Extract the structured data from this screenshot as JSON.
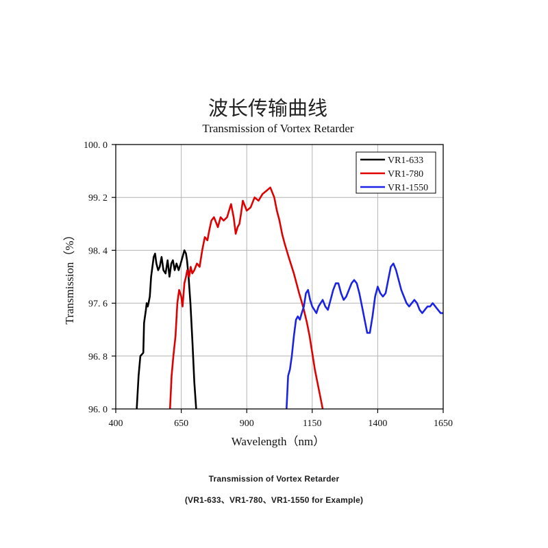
{
  "chart_data": {
    "type": "line",
    "title_cn": "波长传输曲线",
    "title": "Transmission of Vortex Retarder",
    "xlabel": "Wavelength（nm）",
    "ylabel": "Transmission（%）",
    "xlim": [
      400,
      1650
    ],
    "ylim": [
      96.0,
      100.0
    ],
    "xticks": [
      400,
      650,
      900,
      1150,
      1400,
      1650
    ],
    "yticks": [
      96.0,
      96.8,
      97.6,
      98.4,
      99.2,
      100.0
    ],
    "ytick_labels": [
      "96. 0",
      "96. 8",
      "97. 6",
      "98. 4",
      "99. 2",
      "100. 0"
    ],
    "grid": true,
    "legend_position": "top-right",
    "series": [
      {
        "name": "VR1-633",
        "color": "#000000",
        "x": [
          480,
          487,
          494,
          505,
          508,
          515,
          518,
          522,
          525,
          530,
          535,
          545,
          550,
          555,
          562,
          568,
          575,
          582,
          590,
          598,
          605,
          612,
          618,
          625,
          632,
          640,
          648,
          655,
          662,
          668,
          672,
          678,
          685,
          693,
          700,
          707
        ],
        "y": [
          96.0,
          96.5,
          96.8,
          96.85,
          97.3,
          97.5,
          97.6,
          97.55,
          97.6,
          97.7,
          98.0,
          98.3,
          98.35,
          98.2,
          98.1,
          98.15,
          98.3,
          98.1,
          98.05,
          98.25,
          98.0,
          98.2,
          98.25,
          98.1,
          98.2,
          98.1,
          98.2,
          98.3,
          98.4,
          98.35,
          98.25,
          98.0,
          97.6,
          97.0,
          96.4,
          96.0
        ]
      },
      {
        "name": "VR1-780",
        "color": "#e00000",
        "x": [
          607,
          613,
          620,
          628,
          635,
          642,
          650,
          655,
          662,
          668,
          673,
          680,
          686,
          692,
          700,
          710,
          720,
          730,
          740,
          750,
          757,
          765,
          775,
          790,
          800,
          812,
          825,
          840,
          850,
          858,
          865,
          872,
          878,
          885,
          900,
          915,
          930,
          945,
          960,
          975,
          990,
          1005,
          1015,
          1025,
          1035,
          1045,
          1060,
          1080,
          1100,
          1115,
          1130,
          1140,
          1150,
          1160,
          1170,
          1180,
          1190
        ],
        "y": [
          96.0,
          96.5,
          96.8,
          97.1,
          97.6,
          97.8,
          97.7,
          97.55,
          97.9,
          98.0,
          98.1,
          98.0,
          98.15,
          98.05,
          98.1,
          98.2,
          98.15,
          98.4,
          98.6,
          98.55,
          98.7,
          98.85,
          98.9,
          98.75,
          98.9,
          98.85,
          98.9,
          99.1,
          98.9,
          98.65,
          98.75,
          98.8,
          98.95,
          99.15,
          99.0,
          99.05,
          99.2,
          99.15,
          99.25,
          99.3,
          99.35,
          99.2,
          99.0,
          98.85,
          98.65,
          98.5,
          98.3,
          98.05,
          97.75,
          97.55,
          97.3,
          97.1,
          96.85,
          96.6,
          96.4,
          96.2,
          96.0
        ]
      },
      {
        "name": "VR1-1550",
        "color": "#1a22e6",
        "x": [
          1052,
          1058,
          1065,
          1072,
          1080,
          1088,
          1095,
          1103,
          1110,
          1118,
          1126,
          1134,
          1142,
          1150,
          1158,
          1166,
          1174,
          1182,
          1190,
          1200,
          1210,
          1220,
          1230,
          1240,
          1250,
          1260,
          1270,
          1280,
          1290,
          1300,
          1310,
          1320,
          1330,
          1340,
          1350,
          1360,
          1370,
          1380,
          1390,
          1400,
          1410,
          1420,
          1430,
          1440,
          1450,
          1460,
          1470,
          1480,
          1490,
          1500,
          1510,
          1520,
          1530,
          1540,
          1550,
          1560,
          1570,
          1580,
          1590,
          1600,
          1610,
          1620,
          1630,
          1640,
          1650
        ],
        "y": [
          96.0,
          96.5,
          96.6,
          96.8,
          97.1,
          97.35,
          97.4,
          97.35,
          97.45,
          97.55,
          97.75,
          97.8,
          97.65,
          97.55,
          97.5,
          97.45,
          97.55,
          97.6,
          97.65,
          97.55,
          97.5,
          97.65,
          97.8,
          97.9,
          97.9,
          97.75,
          97.65,
          97.7,
          97.8,
          97.9,
          97.95,
          97.9,
          97.75,
          97.55,
          97.35,
          97.15,
          97.15,
          97.4,
          97.7,
          97.85,
          97.75,
          97.7,
          97.75,
          97.95,
          98.15,
          98.2,
          98.1,
          97.95,
          97.8,
          97.7,
          97.6,
          97.55,
          97.6,
          97.65,
          97.6,
          97.5,
          97.45,
          97.5,
          97.55,
          97.55,
          97.6,
          97.55,
          97.5,
          97.45,
          97.45
        ]
      }
    ]
  },
  "caption": {
    "title": "Transmission of Vortex Retarder",
    "subtitle": "(VR1-633、VR1-780、VR1-1550 for Example)"
  },
  "colors": {
    "grid": "#b3b3b3",
    "axis": "#000000"
  }
}
